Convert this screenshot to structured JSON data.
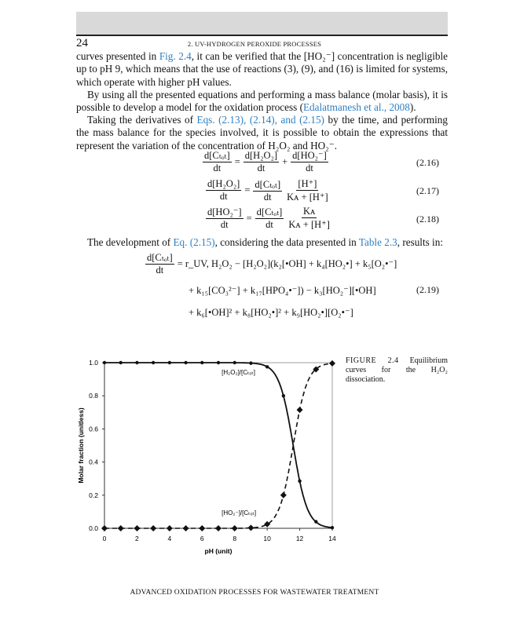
{
  "header": {
    "page_number": "24",
    "running_head": "2. UV-HYDROGEN PEROXIDE PROCESSES"
  },
  "paragraphs": [
    {
      "segments": [
        {
          "t": "curves presented in "
        },
        {
          "t": "Fig. 2.4",
          "link": true
        },
        {
          "t": ", it can be verified that the [HO₂⁻] concentration is negligible up to pH 9, which means that the use of reactions (3), (9), and (16) is limited for systems, which operate with higher pH values."
        }
      ]
    },
    {
      "segments": [
        {
          "t": "By using all the presented equations and performing a mass balance (molar basis), it is possible to develop a model for the oxidation process ("
        },
        {
          "t": "Edalatmanesh et al., 2008",
          "link": true
        },
        {
          "t": ")."
        }
      ]
    },
    {
      "segments": [
        {
          "t": "Taking the derivatives of "
        },
        {
          "t": "Eqs. (2.13), (2.14), and (2.15)",
          "link": true
        },
        {
          "t": " by the time, and performing the mass balance for the species involved, it is possible to obtain the expressions that represent the variation of the concentration of H₂O₂ and HO₂⁻."
        }
      ]
    },
    {
      "segments": [
        {
          "t": "The development of "
        },
        {
          "t": "Eq. (2.15)",
          "link": true
        },
        {
          "t": ", considering the data presented in "
        },
        {
          "t": "Table 2.3",
          "link": true
        },
        {
          "t": ", results in:"
        }
      ]
    }
  ],
  "equations": {
    "e216": {
      "lhs_n": "d[Cₜₒₜ]",
      "lhs_d": "dt",
      "op": "=",
      "t1_n": "d[H₂O₂]",
      "t1_d": "dt",
      "plus": "+",
      "t2_n": "d[HO₂⁻]",
      "t2_d": "dt",
      "no": "(2.16)"
    },
    "e217": {
      "lhs_n": "d[H₂O₂]",
      "lhs_d": "dt",
      "op": "=",
      "t1_n": "d[Cₜₒₜ]",
      "t1_d": "dt",
      "t2_n": "[H⁺]",
      "t2_d": "Kᴀ + [H⁺]",
      "no": "(2.17)"
    },
    "e218": {
      "lhs_n": "d[HO₂⁻]",
      "lhs_d": "dt",
      "op": "=",
      "t1_n": "d[Cₜₒₜ]",
      "t1_d": "dt",
      "t2_n": "Kᴀ",
      "t2_d": "Kᴀ + [H⁺]",
      "no": "(2.18)"
    },
    "e219": {
      "lhs_n": "d[Cₜₒₜ]",
      "lhs_d": "dt",
      "line1": "= r_UV, H₂O₂ − [H₂O₂](k₂[•OH] + k₄[HO₂•] + k₅[O₂•⁻]",
      "line2": "+ k₁₅[CO₃²⁻] + k₁₇[HPO₄•⁻]) − k₃[HO₂⁻][•OH]",
      "line3": "+ k₆[•OH]² + k₈[HO₂•]² + k₉[HO₂•][O₂•⁻]",
      "no": "(2.19)"
    }
  },
  "figure": {
    "caption_label": "FIGURE 2.4",
    "caption_text": "Equilibrium curves for the H₂O₂ dissociation."
  },
  "chart_data": {
    "type": "line",
    "xlabel": "pH (unit)",
    "ylabel": "Molar fraction (unitless)",
    "xlim": [
      0,
      14
    ],
    "ylim": [
      0,
      1
    ],
    "xticks": [
      "0",
      "2",
      "4",
      "6",
      "8",
      "10",
      "12",
      "14"
    ],
    "yticks": [
      "0.0",
      "0.2",
      "0.4",
      "0.6",
      "0.8",
      "1.0"
    ],
    "x": [
      0,
      1,
      2,
      3,
      4,
      5,
      6,
      7,
      8,
      9,
      10,
      11,
      12,
      13,
      14
    ],
    "series": [
      {
        "name": "[H₂O₂]/[Cₜₒₜ]",
        "style": "solid",
        "marker": "circle",
        "values": [
          1,
          1,
          1,
          1,
          1,
          1,
          1,
          1,
          1,
          0.997,
          0.975,
          0.8,
          0.285,
          0.04,
          0.004
        ]
      },
      {
        "name": "[HO₂⁻]/[Cₜₒₜ]",
        "style": "dashed",
        "marker": "diamond",
        "values": [
          0,
          0,
          0,
          0,
          0,
          0,
          0,
          0,
          0,
          0.003,
          0.025,
          0.2,
          0.715,
          0.96,
          0.996
        ]
      }
    ],
    "grid": false,
    "color": "#111111"
  },
  "footer": {
    "text": "ADVANCED OXIDATION PROCESSES FOR WASTEWATER TREATMENT"
  }
}
